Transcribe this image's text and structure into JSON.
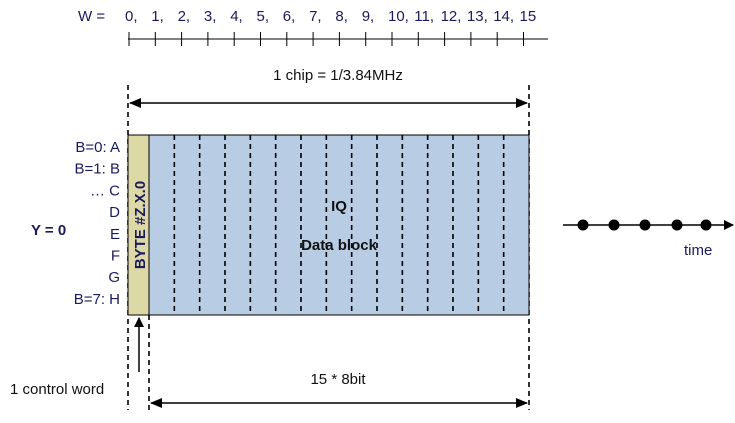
{
  "w_axis": {
    "label": "W =",
    "ticks": [
      "0,",
      "1,",
      "2,",
      "3,",
      "4,",
      "5,",
      "6,",
      "7,",
      "8,",
      "9,",
      "10,",
      "11,",
      "12,",
      "13,",
      "14,",
      "15"
    ]
  },
  "chip_label": "1 chip = 1/3.84MHz",
  "bits": [
    "B=0: A",
    "B=1: B",
    "… C",
    "D",
    "E",
    "F",
    "G",
    "B=7: H"
  ],
  "y_label": "Y = 0",
  "control_byte_label": "BYTE #Z.X.0",
  "data_block": {
    "line1": "IQ",
    "line2": "Data block"
  },
  "control_word_label": "1 control word",
  "bits_label": "15 * 8bit",
  "time_label": "time",
  "colors": {
    "data_block_fill": "#b8cce4",
    "control_fill": "#ddd9a7",
    "text_blue": "#1a1a5e",
    "outline": "#000000"
  }
}
